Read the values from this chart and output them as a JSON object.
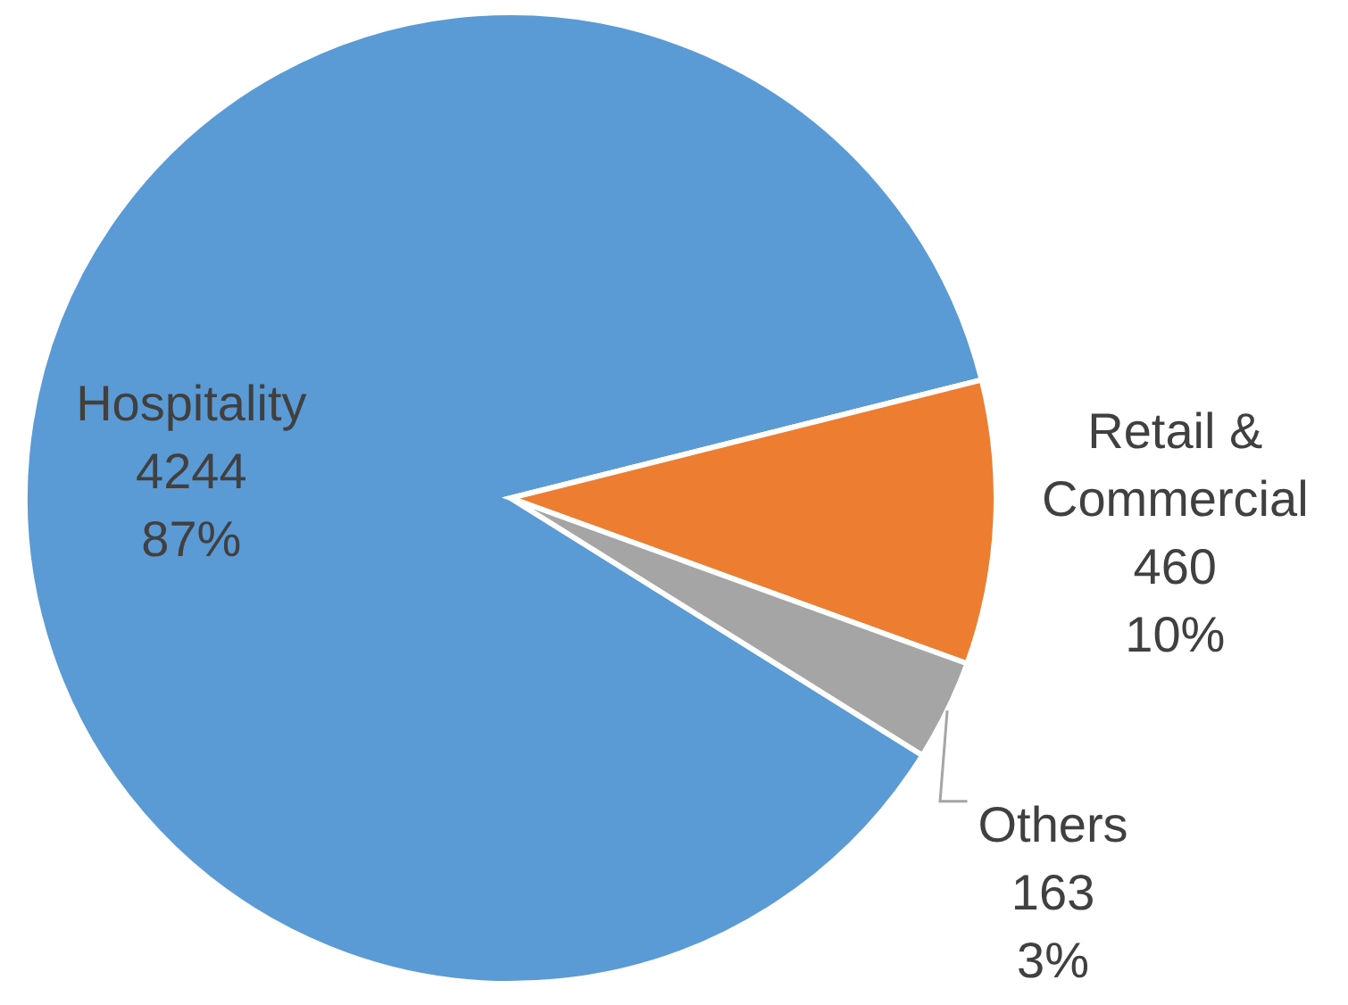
{
  "chart_data": {
    "type": "pie",
    "categories": [
      "Hospitality",
      "Retail &\nCommercial",
      "Others"
    ],
    "values": [
      4244,
      460,
      163
    ],
    "value_labels": [
      "4244\n87%",
      "460\n10%",
      "163\n3%"
    ],
    "colors": [
      "#5b9bd5",
      "#ed7d31",
      "#a5a5a5"
    ]
  }
}
